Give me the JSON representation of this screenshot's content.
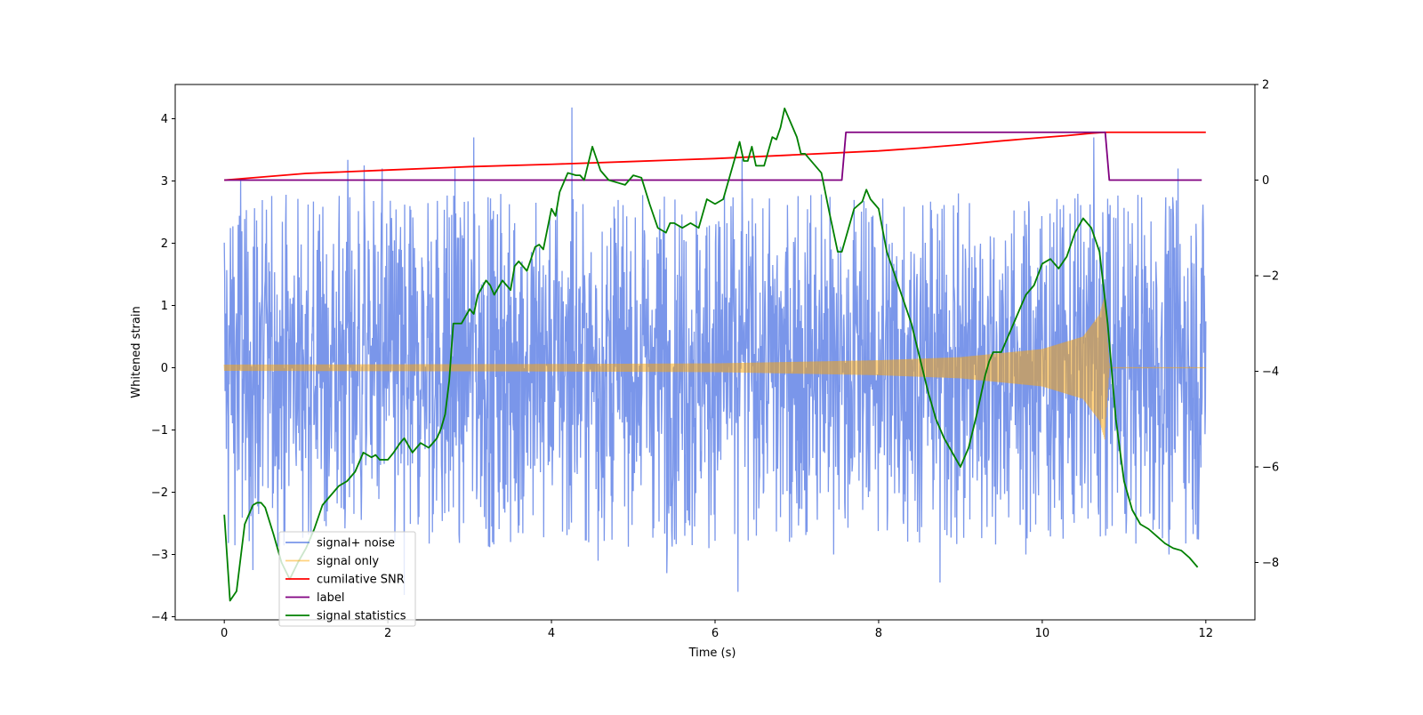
{
  "chart_data": {
    "type": "line",
    "title": "",
    "xlabel": "Time (s)",
    "ylabel": "Whitened strain",
    "y2label": "",
    "xlim": [
      -0.6,
      12.6
    ],
    "ylim": [
      -4.05,
      4.55
    ],
    "y2lim": [
      -9.2,
      2.0
    ],
    "x_ticks": [
      0,
      2,
      4,
      6,
      8,
      10,
      12
    ],
    "y_ticks": [
      -4,
      -3,
      -2,
      -1,
      0,
      1,
      2,
      3,
      4
    ],
    "y2_ticks": [
      -8,
      -6,
      -4,
      -2,
      0,
      2
    ],
    "legend_position": "lower-left",
    "series": [
      {
        "name": "signal+ noise",
        "axis": "left",
        "color": "#4169e1",
        "kind": "noise",
        "x_range": [
          0,
          12
        ],
        "typical_range": [
          -1.5,
          1.6
        ],
        "envelope": [
          -3.6,
          4.18
        ],
        "spikes": [
          {
            "x": 0.2,
            "y": 3.0
          },
          {
            "x": 1.51,
            "y": 3.34
          },
          {
            "x": 1.71,
            "y": 3.25
          },
          {
            "x": 1.93,
            "y": 3.2
          },
          {
            "x": 2.82,
            "y": 3.2
          },
          {
            "x": 3.05,
            "y": 3.7
          },
          {
            "x": 4.25,
            "y": 4.18
          },
          {
            "x": 6.33,
            "y": 3.35
          },
          {
            "x": 10.63,
            "y": 3.7
          },
          {
            "x": 11.66,
            "y": 3.2
          },
          {
            "x": 6.28,
            "y": -3.6
          },
          {
            "x": 8.75,
            "y": -3.45
          },
          {
            "x": 5.41,
            "y": -3.3
          },
          {
            "x": 4.57,
            "y": -3.1
          },
          {
            "x": 0.35,
            "y": -3.25
          },
          {
            "x": 3.5,
            "y": -2.8
          },
          {
            "x": 9.8,
            "y": -3.0
          },
          {
            "x": 11.55,
            "y": -3.0
          },
          {
            "x": 7.45,
            "y": -3.0
          },
          {
            "x": 2.2,
            "y": -3.65
          }
        ]
      },
      {
        "name": "signal only",
        "axis": "left",
        "color": "#ffa500",
        "kind": "chirp",
        "x_range": [
          0,
          12
        ],
        "amplitude_at": [
          [
            0,
            0.05
          ],
          [
            4,
            0.06
          ],
          [
            6,
            0.07
          ],
          [
            8,
            0.12
          ],
          [
            9,
            0.17
          ],
          [
            10,
            0.3
          ],
          [
            10.5,
            0.5
          ],
          [
            10.7,
            0.85
          ],
          [
            10.77,
            1.18
          ]
        ],
        "merger_time": 10.77,
        "post_merger_value": 0.0
      },
      {
        "name": "cumilative SNR",
        "axis": "right",
        "color": "#ff0000",
        "x": [
          0,
          1,
          2,
          3,
          4,
          5,
          6,
          7,
          8,
          8.5,
          9,
          9.5,
          10,
          10.3,
          10.6,
          10.77,
          11,
          12
        ],
        "y": [
          0.0,
          0.14,
          0.21,
          0.28,
          0.33,
          0.39,
          0.45,
          0.53,
          0.61,
          0.67,
          0.74,
          0.82,
          0.89,
          0.93,
          0.98,
          1.0,
          1.0,
          1.0
        ]
      },
      {
        "name": "label",
        "axis": "right",
        "color": "#800080",
        "x": [
          0,
          7.55,
          7.6,
          10.77,
          10.82,
          11.95
        ],
        "y": [
          0,
          0,
          1,
          1,
          0,
          0
        ]
      },
      {
        "name": "signal statistics",
        "axis": "right",
        "color": "#008000",
        "x": [
          0.0,
          0.07,
          0.15,
          0.2,
          0.25,
          0.3,
          0.35,
          0.4,
          0.45,
          0.5,
          0.6,
          0.7,
          0.8,
          0.9,
          1.0,
          1.1,
          1.2,
          1.3,
          1.4,
          1.5,
          1.6,
          1.7,
          1.8,
          1.85,
          1.9,
          2.0,
          2.07,
          2.15,
          2.2,
          2.3,
          2.4,
          2.5,
          2.6,
          2.65,
          2.7,
          2.75,
          2.8,
          2.85,
          2.9,
          3.0,
          3.05,
          3.1,
          3.2,
          3.25,
          3.3,
          3.4,
          3.5,
          3.55,
          3.6,
          3.7,
          3.8,
          3.85,
          3.9,
          4.0,
          4.05,
          4.1,
          4.2,
          4.3,
          4.35,
          4.4,
          4.5,
          4.6,
          4.7,
          4.8,
          4.9,
          5.0,
          5.1,
          5.2,
          5.3,
          5.4,
          5.45,
          5.5,
          5.6,
          5.7,
          5.8,
          5.9,
          6.0,
          6.1,
          6.2,
          6.25,
          6.3,
          6.35,
          6.4,
          6.45,
          6.5,
          6.6,
          6.7,
          6.75,
          6.8,
          6.85,
          6.9,
          7.0,
          7.05,
          7.1,
          7.2,
          7.3,
          7.4,
          7.5,
          7.55,
          7.6,
          7.7,
          7.8,
          7.85,
          7.9,
          8.0,
          8.1,
          8.2,
          8.3,
          8.4,
          8.5,
          8.6,
          8.7,
          8.8,
          8.9,
          9.0,
          9.1,
          9.2,
          9.3,
          9.35,
          9.4,
          9.5,
          9.6,
          9.7,
          9.8,
          9.9,
          10.0,
          10.1,
          10.2,
          10.3,
          10.4,
          10.5,
          10.6,
          10.7,
          10.8,
          10.9,
          11.0,
          11.1,
          11.2,
          11.3,
          11.4,
          11.5,
          11.6,
          11.7,
          11.8,
          11.9
        ],
        "y": [
          -7.0,
          -8.8,
          -8.6,
          -7.9,
          -7.2,
          -7.0,
          -6.8,
          -6.75,
          -6.75,
          -6.85,
          -7.4,
          -8.0,
          -8.35,
          -8.0,
          -7.7,
          -7.3,
          -6.8,
          -6.6,
          -6.4,
          -6.3,
          -6.1,
          -5.7,
          -5.8,
          -5.75,
          -5.85,
          -5.85,
          -5.7,
          -5.5,
          -5.4,
          -5.7,
          -5.5,
          -5.6,
          -5.4,
          -5.2,
          -4.9,
          -4.2,
          -3.0,
          -3.0,
          -3.0,
          -2.7,
          -2.8,
          -2.4,
          -2.1,
          -2.2,
          -2.4,
          -2.1,
          -2.3,
          -1.8,
          -1.7,
          -1.9,
          -1.4,
          -1.35,
          -1.45,
          -0.6,
          -0.75,
          -0.25,
          0.15,
          0.1,
          0.1,
          0.0,
          0.7,
          0.2,
          0.0,
          -0.05,
          -0.1,
          0.1,
          0.05,
          -0.5,
          -1.0,
          -1.1,
          -0.9,
          -0.9,
          -1.0,
          -0.9,
          -1.0,
          -0.4,
          -0.5,
          -0.4,
          0.2,
          0.5,
          0.8,
          0.4,
          0.4,
          0.7,
          0.3,
          0.3,
          0.9,
          0.85,
          1.1,
          1.5,
          1.3,
          0.9,
          0.55,
          0.55,
          0.35,
          0.15,
          -0.7,
          -1.5,
          -1.5,
          -1.2,
          -0.6,
          -0.45,
          -0.2,
          -0.4,
          -0.6,
          -1.5,
          -2.0,
          -2.5,
          -3.0,
          -3.7,
          -4.4,
          -5.0,
          -5.4,
          -5.7,
          -6.0,
          -5.6,
          -4.9,
          -4.1,
          -3.8,
          -3.6,
          -3.6,
          -3.2,
          -2.8,
          -2.4,
          -2.2,
          -1.75,
          -1.65,
          -1.85,
          -1.6,
          -1.1,
          -0.8,
          -1.0,
          -1.5,
          -3.0,
          -5.0,
          -6.3,
          -6.9,
          -7.2,
          -7.3,
          -7.45,
          -7.6,
          -7.7,
          -7.75,
          -7.9,
          -8.1
        ]
      }
    ]
  }
}
